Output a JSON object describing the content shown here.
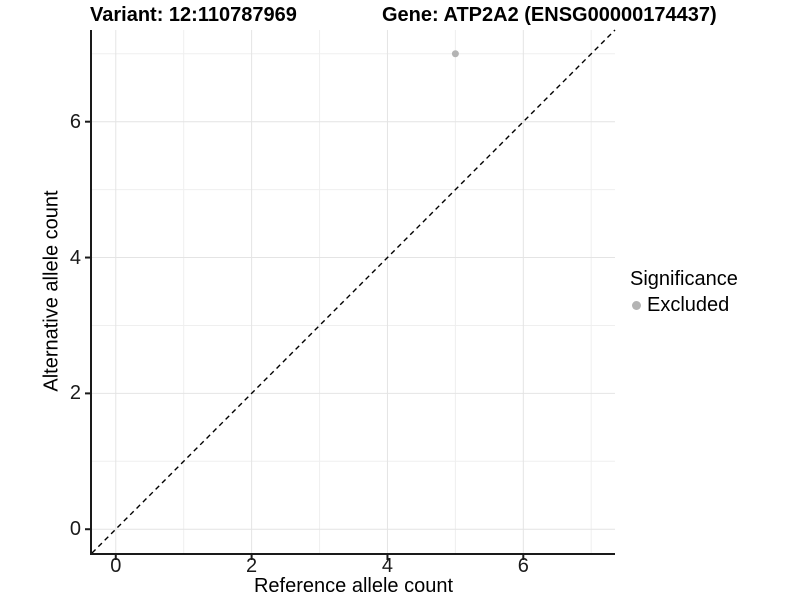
{
  "header": {
    "variant_title": "Variant: 12:110787969",
    "gene_title": "Gene: ATP2A2 (ENSG00000174437)"
  },
  "legend": {
    "title": "Significance",
    "items": [
      {
        "label": "Excluded",
        "marker": "circle",
        "color": "#b4b4b4"
      }
    ]
  },
  "chart_data": {
    "type": "scatter",
    "title": "Variant: 12:110787969 / Gene: ATP2A2 (ENSG00000174437)",
    "xlabel": "Reference allele count",
    "ylabel": "Alternative allele count",
    "xlim": [
      -0.35,
      7.35
    ],
    "ylim": [
      -0.35,
      7.35
    ],
    "x_ticks": [
      0,
      2,
      4,
      6
    ],
    "y_ticks": [
      0,
      2,
      4,
      6
    ],
    "grid_major": [
      0,
      2,
      4,
      6
    ],
    "grid_minor": [
      1,
      3,
      5,
      7
    ],
    "grid": "on",
    "legend_position": "right",
    "series": [
      {
        "name": "Excluded",
        "color": "#b4b4b4",
        "points": [
          [
            5,
            7
          ]
        ]
      }
    ],
    "identity_line": {
      "style": "dashed",
      "slope": 1,
      "intercept": 0,
      "color": "#000000"
    }
  },
  "colors": {
    "background": "#ffffff",
    "axis_line": "#1a1a1a",
    "grid_major": "#e4e4e4",
    "grid_minor": "#efefef",
    "tick_text": "#1a1a1a",
    "point": "#b4b4b4"
  }
}
